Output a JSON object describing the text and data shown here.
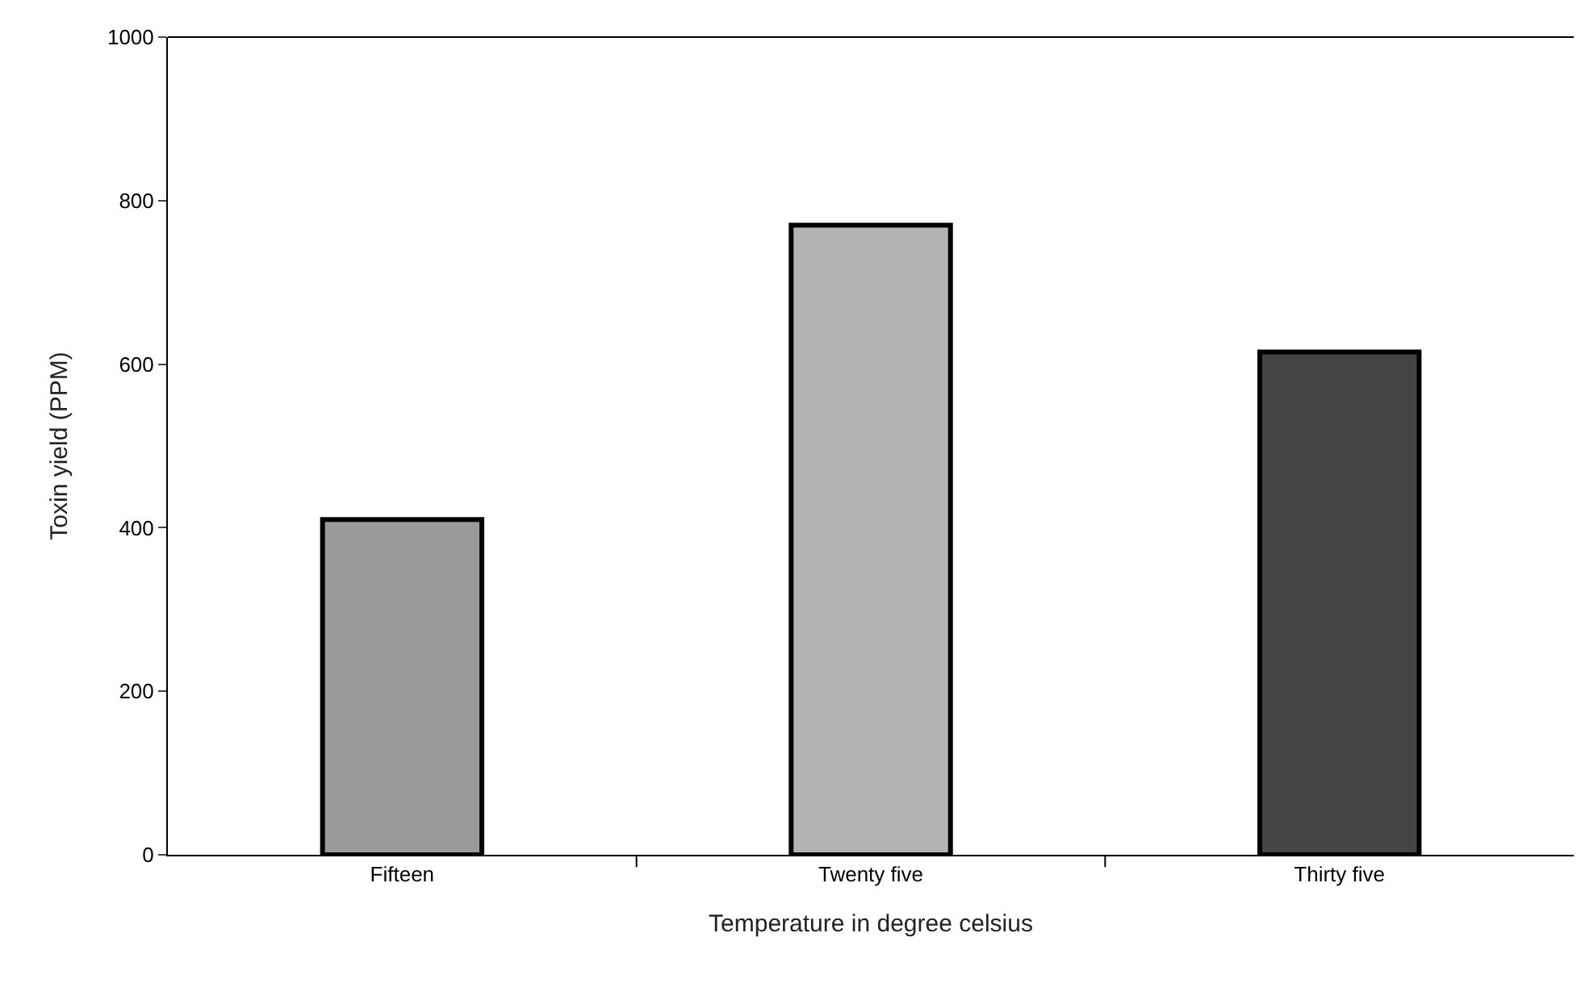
{
  "chart_data": {
    "type": "bar",
    "xlabel": "Temperature in degree celsius",
    "ylabel": "Toxin yield (PPM)",
    "categories": [
      "Fifteen",
      "Twenty five",
      "Thirty five"
    ],
    "values": [
      410,
      770,
      615
    ],
    "colors": [
      "#9a9a9a",
      "#b4b4b4",
      "#444444"
    ],
    "ylim": [
      0,
      1000
    ],
    "yticks": [
      0,
      200,
      400,
      600,
      800,
      1000
    ]
  }
}
